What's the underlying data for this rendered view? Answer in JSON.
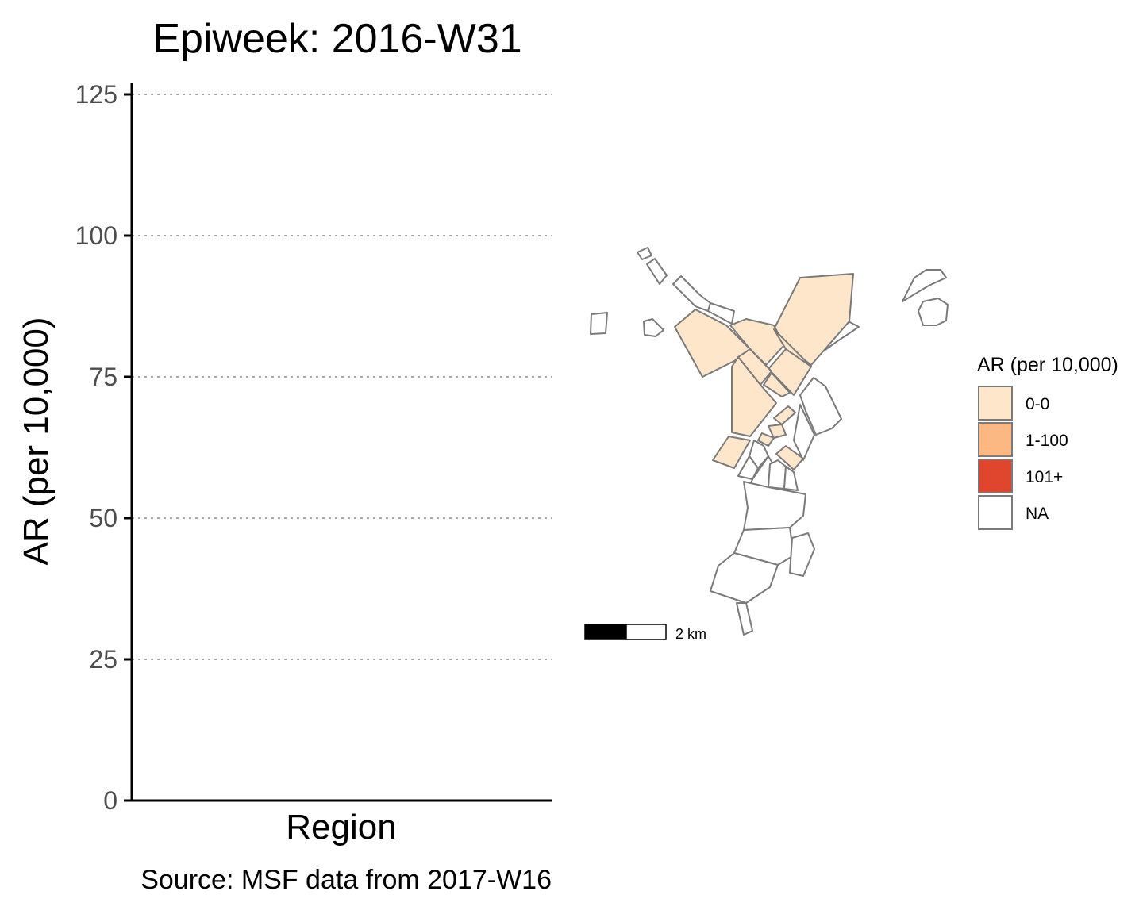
{
  "chart_data": {
    "type": "bar",
    "title": "Epiweek: 2016-W31",
    "xlabel": "Region",
    "ylabel": "AR (per 10,000)",
    "caption": "Source: MSF data from 2017-W16",
    "ylim": [
      0,
      125
    ],
    "y_ticks": [
      0,
      25,
      50,
      75,
      100,
      125
    ],
    "grid": "horizontal dotted",
    "categories": [],
    "values": []
  },
  "map": {
    "legend": {
      "title": "AR (per 10,000)",
      "placement": "right",
      "items": [
        {
          "label": "0-0",
          "color": "#fde6c9"
        },
        {
          "label": "1-100",
          "color": "#fbb882"
        },
        {
          "label": "101+",
          "color": "#e0462e"
        },
        {
          "label": "NA",
          "color": "#ffffff"
        }
      ]
    },
    "scale_bar": {
      "label": "2 km"
    },
    "colors": {
      "border": "#7a7a7a"
    }
  }
}
